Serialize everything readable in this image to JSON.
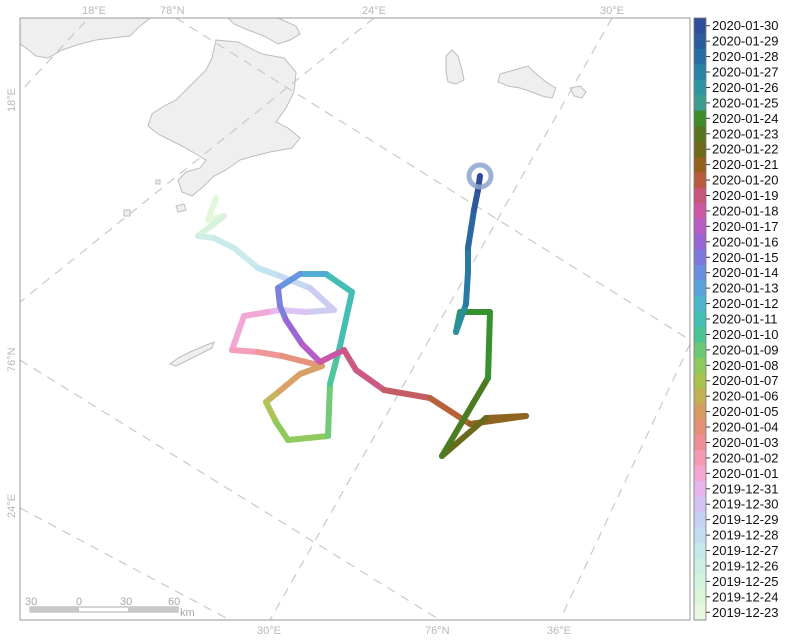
{
  "map": {
    "top_labels": [
      "18°E",
      "78°N",
      "24°E",
      "30°E"
    ],
    "bottom_labels": [
      "30°E",
      "76°N",
      "36°E"
    ],
    "left_labels": [
      "18°E",
      "76°N",
      "24°E"
    ]
  },
  "scale_bar": {
    "ticks": [
      "30",
      "0",
      "30",
      "60"
    ],
    "unit": "km"
  },
  "colors": {
    "land": "#efefef",
    "coast": "#bdbdbd",
    "grid": "#c9c9c9",
    "frame": "#999999",
    "marker": "#8da3cc"
  },
  "legend": {
    "dates": [
      "2020-01-30",
      "2020-01-29",
      "2020-01-28",
      "2020-01-27",
      "2020-01-26",
      "2020-01-25",
      "2020-01-24",
      "2020-01-23",
      "2020-01-22",
      "2020-01-21",
      "2020-01-20",
      "2020-01-19",
      "2020-01-18",
      "2020-01-17",
      "2020-01-16",
      "2020-01-15",
      "2020-01-14",
      "2020-01-13",
      "2020-01-12",
      "2020-01-11",
      "2020-01-10",
      "2020-01-09",
      "2020-01-08",
      "2020-01-07",
      "2020-01-06",
      "2020-01-05",
      "2020-01-04",
      "2020-01-03",
      "2020-01-02",
      "2020-01-01",
      "2019-12-31",
      "2019-12-30",
      "2019-12-29",
      "2019-12-28",
      "2019-12-27",
      "2019-12-26",
      "2019-12-25",
      "2019-12-24",
      "2019-12-23"
    ],
    "colors": [
      "#2f4e9a",
      "#2a5c9e",
      "#286ea2",
      "#2a82a5",
      "#2f94a4",
      "#3b9e8f",
      "#3d8a2f",
      "#597420",
      "#6d6a1d",
      "#93601e",
      "#b85a3e",
      "#c8557a",
      "#cc58a3",
      "#b65cc4",
      "#9865d4",
      "#7d78dc",
      "#6a8fe0",
      "#5aa4db",
      "#4db6cc",
      "#43bfb4",
      "#4cc395",
      "#6cc876",
      "#8ec95e",
      "#a7c24f",
      "#c2b054",
      "#d49c62",
      "#e39075",
      "#ef8e93",
      "#f49ab3",
      "#f2a6d2",
      "#e7b4ee",
      "#d4c2f4",
      "#c6cff4",
      "#c3ddf0",
      "#c5e9ea",
      "#cbefe2",
      "#d2f3dc",
      "#dbf5d7",
      "#e7f8df"
    ]
  },
  "track": [
    {
      "date": "2019-12-23",
      "color": "#e4f6dc"
    },
    {
      "date": "2019-12-24",
      "color": "#d8f2dc"
    },
    {
      "date": "2019-12-25",
      "color": "#cfefe4"
    },
    {
      "date": "2019-12-26",
      "color": "#c9ebea"
    },
    {
      "date": "2019-12-27",
      "color": "#c4e3f0"
    },
    {
      "date": "2019-12-28",
      "color": "#c6d8f2"
    },
    {
      "date": "2019-12-29",
      "color": "#cdcdf4"
    },
    {
      "date": "2019-12-30",
      "color": "#dcc4f4"
    },
    {
      "date": "2019-12-31",
      "color": "#eab8ee"
    },
    {
      "date": "2020-01-01",
      "color": "#f2a8d6"
    },
    {
      "date": "2020-01-02",
      "color": "#f49ebc"
    },
    {
      "date": "2020-01-03",
      "color": "#f0959a"
    },
    {
      "date": "2020-01-04",
      "color": "#e6937c"
    },
    {
      "date": "2020-01-05",
      "color": "#d8a266"
    },
    {
      "date": "2020-01-06",
      "color": "#c9b45e"
    },
    {
      "date": "2020-01-07",
      "color": "#aec456"
    },
    {
      "date": "2020-01-08",
      "color": "#90c95e"
    },
    {
      "date": "2020-01-09",
      "color": "#72ca76"
    },
    {
      "date": "2020-01-10",
      "color": "#4ec49a"
    },
    {
      "date": "2020-01-11",
      "color": "#44bdb6"
    },
    {
      "date": "2020-01-12",
      "color": "#52acd4"
    },
    {
      "date": "2020-01-13",
      "color": "#6596e0"
    },
    {
      "date": "2020-01-14",
      "color": "#7b80dc"
    },
    {
      "date": "2020-01-15",
      "color": "#9a68d6"
    },
    {
      "date": "2020-01-16",
      "color": "#b45ec8"
    },
    {
      "date": "2020-01-17",
      "color": "#c857a8"
    },
    {
      "date": "2020-01-18",
      "color": "#cc5884"
    },
    {
      "date": "2020-01-19",
      "color": "#c45c64"
    },
    {
      "date": "2020-01-20",
      "color": "#b8623a"
    },
    {
      "date": "2020-01-21",
      "color": "#8f6420"
    },
    {
      "date": "2020-01-22",
      "color": "#6b6a1c"
    },
    {
      "date": "2020-01-23",
      "color": "#4c7c22"
    },
    {
      "date": "2020-01-24",
      "color": "#36902e"
    },
    {
      "date": "2020-01-25",
      "color": "#2e9868"
    },
    {
      "date": "2020-01-26",
      "color": "#2a8ea0"
    },
    {
      "date": "2020-01-27",
      "color": "#2a7aa4"
    },
    {
      "date": "2020-01-28",
      "color": "#2a68a0"
    },
    {
      "date": "2020-01-29",
      "color": "#2d589c"
    },
    {
      "date": "2020-01-30",
      "color": "#2f4c98"
    }
  ]
}
